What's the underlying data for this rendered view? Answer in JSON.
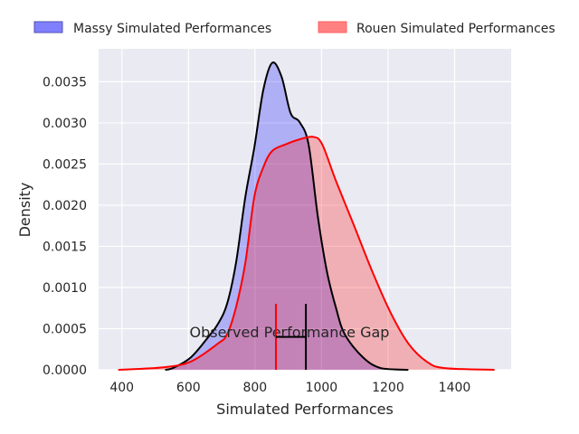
{
  "chart_data": {
    "type": "area",
    "title": "",
    "xlabel": "Simulated Performances",
    "ylabel": "Density",
    "xlim": [
      330,
      1570
    ],
    "ylim": [
      0,
      0.0039
    ],
    "grid": true,
    "legend_placement": "top (above plot)",
    "x_ticks": [
      400,
      600,
      800,
      1000,
      1200,
      1400
    ],
    "x_tick_labels": [
      "400",
      "600",
      "800",
      "1000",
      "1200",
      "1400"
    ],
    "y_ticks": [
      0,
      0.0005,
      0.001,
      0.0015,
      0.002,
      0.0025,
      0.003,
      0.0035
    ],
    "y_tick_labels": [
      "0.0000",
      "0.0005",
      "0.0010",
      "0.0015",
      "0.0020",
      "0.0025",
      "0.0030",
      "0.0035"
    ],
    "series": [
      {
        "name": "Massy Simulated Performances",
        "line_color": "#000000",
        "fill_color": "#0000ff",
        "legend_color": "#8080ff",
        "x": [
          530,
          553,
          607,
          660,
          689,
          716,
          743,
          771,
          798,
          825,
          852,
          880,
          907,
          934,
          961,
          989,
          1016,
          1043,
          1070,
          1125,
          1179,
          1261
        ],
        "y": [
          0,
          2e-05,
          0.00015,
          0.0004,
          0.00056,
          0.0008,
          0.0013,
          0.0021,
          0.0027,
          0.0034,
          0.00373,
          0.00356,
          0.00312,
          0.00301,
          0.00274,
          0.00186,
          0.0012,
          0.00076,
          0.00043,
          0.00015,
          2e-05,
          0
        ]
      },
      {
        "name": "Rouen Simulated Performances",
        "line_color": "#ff0000",
        "fill_color": "#ff0000",
        "legend_color": "#ff8080",
        "x": [
          389,
          525,
          607,
          689,
          716,
          743,
          771,
          798,
          825,
          852,
          893,
          934,
          975,
          1002,
          1043,
          1098,
          1152,
          1207,
          1261,
          1316,
          1370,
          1520
        ],
        "y": [
          0,
          3e-05,
          0.0001,
          0.00032,
          0.00043,
          0.00076,
          0.0013,
          0.0021,
          0.00246,
          0.00266,
          0.00274,
          0.0028,
          0.00283,
          0.00274,
          0.0023,
          0.00175,
          0.0012,
          0.0007,
          0.00032,
          0.0001,
          2e-05,
          0
        ]
      }
    ],
    "annotations": {
      "gap_label": "Observed Performance Gap",
      "rouen_observed": 863,
      "massy_observed": 953,
      "marker_height": 0.0008,
      "gap_bar_y": 0.0004
    }
  }
}
